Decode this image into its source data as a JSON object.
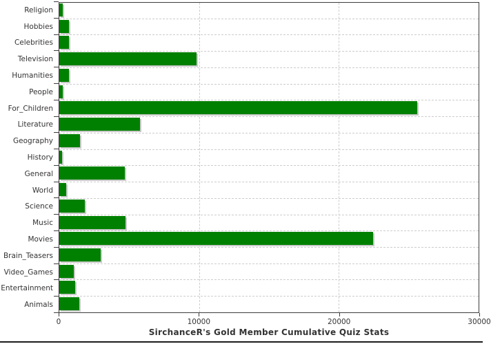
{
  "chart_data": {
    "type": "bar",
    "orientation": "horizontal",
    "title": "SirchanceR's Gold Member Cumulative Quiz Stats",
    "categories": [
      "Religion",
      "Hobbies",
      "Celebrities",
      "Television",
      "Humanities",
      "People",
      "For_Children",
      "Literature",
      "Geography",
      "History",
      "General",
      "World",
      "Science",
      "Music",
      "Movies",
      "Brain_Teasers",
      "Video_Games",
      "Entertainment",
      "Animals"
    ],
    "values": [
      250,
      710,
      710,
      9830,
      710,
      270,
      25600,
      5750,
      1460,
      210,
      4680,
      470,
      1850,
      4730,
      22430,
      2950,
      1020,
      1120,
      1410
    ],
    "xlabel": "",
    "ylabel": "",
    "xlim": [
      0,
      30000
    ],
    "x_ticks": [
      0,
      10000,
      20000,
      30000
    ],
    "x_tick_labels": [
      "0",
      "10000",
      "20000",
      "30000"
    ],
    "grid": "dashed",
    "legend": "none",
    "bar_color": "#008000",
    "bar_shadow_color": "#c9c9c9",
    "gridline_color": "#cccccc",
    "axis_color": "#3a3a3a",
    "text_color": "#333333"
  }
}
